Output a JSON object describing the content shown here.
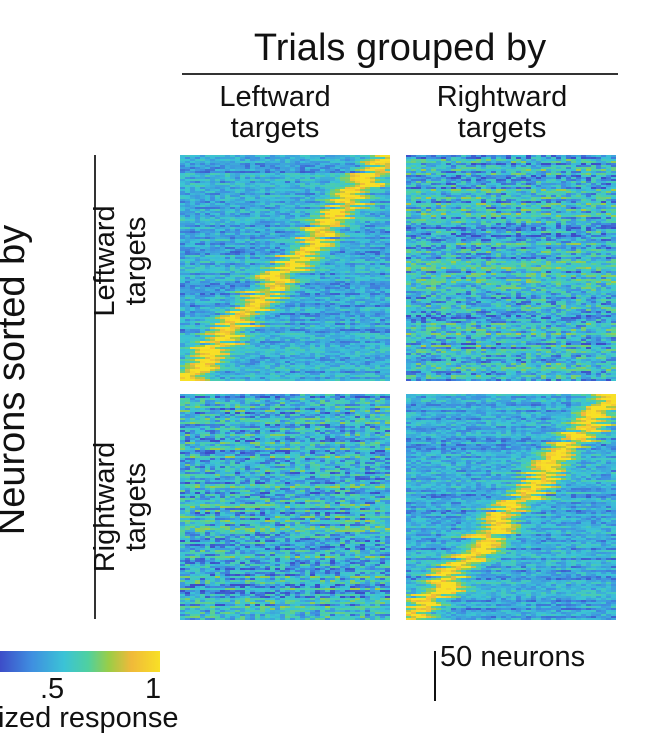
{
  "chart_data": {
    "type": "heatmap",
    "title": "Trials grouped by",
    "column_labels": [
      {
        "line1": "Leftward",
        "line2": "targets"
      },
      {
        "line1": "Rightward",
        "line2": "targets"
      }
    ],
    "row_axis_title": "Neurons sorted by",
    "row_labels": [
      {
        "line1": "Leftward",
        "line2": "targets"
      },
      {
        "line1": "Rightward",
        "line2": "targets"
      }
    ],
    "panels": [
      {
        "row": "Leftward targets",
        "column": "Leftward targets",
        "sorted_diagonal": true
      },
      {
        "row": "Leftward targets",
        "column": "Rightward targets",
        "sorted_diagonal": false
      },
      {
        "row": "Rightward targets",
        "column": "Leftward targets",
        "sorted_diagonal": false
      },
      {
        "row": "Rightward targets",
        "column": "Rightward targets",
        "sorted_diagonal": true
      }
    ],
    "colorbar": {
      "label": "ized response",
      "ticks": [
        ".5",
        "1"
      ],
      "range": [
        0,
        1
      ],
      "colors": [
        "#3d4dc8",
        "#3f8fe0",
        "#3bc3d6",
        "#4fd0a0",
        "#9acd47",
        "#f0b93a",
        "#f8e026"
      ]
    },
    "scale_bar": {
      "label": "50 neurons",
      "neurons": 50
    }
  }
}
